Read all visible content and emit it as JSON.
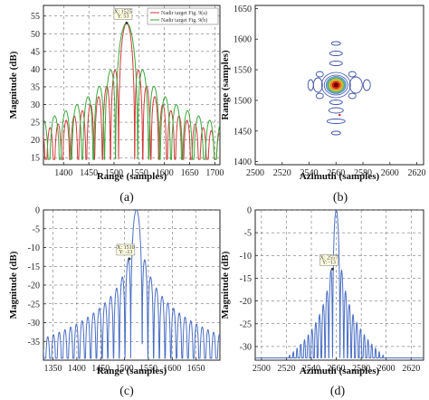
{
  "chart_data": [
    {
      "panel": "(a)",
      "type": "line",
      "xlabel": "Range (samples)",
      "ylabel": "Magnitude (dB)",
      "xlim": [
        1360,
        1710
      ],
      "ylim": [
        13,
        58
      ],
      "xticks": [
        1400,
        1450,
        1500,
        1550,
        1600,
        1650,
        1700
      ],
      "yticks": [
        15,
        20,
        25,
        30,
        35,
        40,
        45,
        50,
        55
      ],
      "grid": true,
      "legend_position": "top-right",
      "series": [
        {
          "name": "Nadir target Fig. 9(a)",
          "color": "#d23a3a",
          "peak_x": 1525,
          "peak_y": 53,
          "mainlobe_halfwidth": 16,
          "sidelobe_period": 14
        },
        {
          "name": "Nadir target Fig. 9(b)",
          "color": "#3aa83a",
          "peak_x": 1525,
          "peak_y": 53,
          "mainlobe_halfwidth": 22,
          "sidelobe_period": 19
        }
      ],
      "annotations": [
        {
          "x": 1525,
          "y": 53,
          "text": "X: 1525\nY: 53"
        }
      ],
      "caption": "(a)"
    },
    {
      "panel": "(b)",
      "type": "contour",
      "xlabel": "Azimuth (samples)",
      "ylabel": "Range (samples)",
      "xlim": [
        2500,
        2625
      ],
      "ylim": [
        1395,
        1655
      ],
      "xticks": [
        2500,
        2520,
        2540,
        2560,
        2580,
        2600,
        2620
      ],
      "yticks": [
        1400,
        1450,
        1500,
        1550,
        1600,
        1650
      ],
      "grid": false,
      "center": {
        "azimuth": 2560,
        "range": 1525
      },
      "caption": "(b)"
    },
    {
      "panel": "(c)",
      "type": "line",
      "xlabel": "Range (samples)",
      "ylabel": "Magnitude (dB)",
      "xlim": [
        1330,
        1700
      ],
      "ylim": [
        -40,
        0
      ],
      "xticks": [
        1350,
        1400,
        1450,
        1500,
        1550,
        1600,
        1650
      ],
      "yticks": [
        0,
        -5,
        -10,
        -15,
        -20,
        -25,
        -30,
        -35
      ],
      "grid": true,
      "series": [
        {
          "name": "",
          "color": "#4a6fc4",
          "peak_x": 1525,
          "peak_y": 0,
          "mainlobe_halfwidth": 12,
          "sidelobe_period": 12
        }
      ],
      "annotations": [
        {
          "x": 1510,
          "y": -13,
          "text": "X: 1510\nY: -13"
        }
      ],
      "caption": "(c)"
    },
    {
      "panel": "(d)",
      "type": "line",
      "xlabel": "Azimuth (samples)",
      "ylabel": "Magnitude (dB)",
      "xlim": [
        2495,
        2630
      ],
      "ylim": [
        -33,
        0
      ],
      "xticks": [
        2500,
        2520,
        2540,
        2560,
        2580,
        2600,
        2620
      ],
      "yticks": [
        0,
        -5,
        -10,
        -15,
        -20,
        -25,
        -30
      ],
      "grid": true,
      "series": [
        {
          "name": "",
          "color": "#4a6fc4",
          "peak_x": 2560,
          "peak_y": 0,
          "mainlobe_halfwidth": 3,
          "sidelobe_period": 4
        }
      ],
      "annotations": [
        {
          "x": 2557,
          "y": -13,
          "text": "X: 2557\nY: -13"
        }
      ],
      "caption": "(d)"
    }
  ]
}
